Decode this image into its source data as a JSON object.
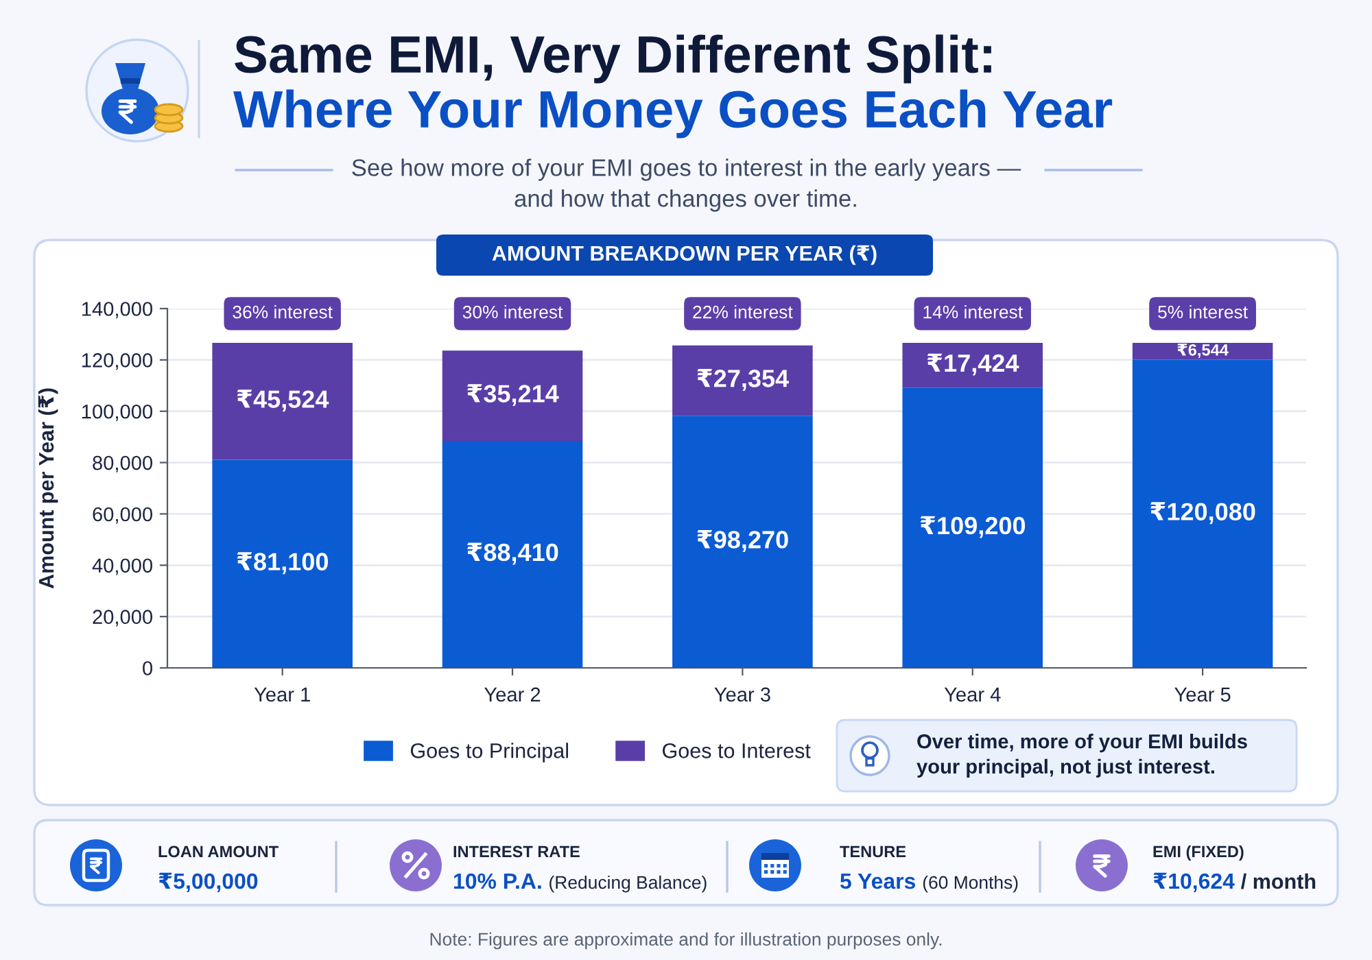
{
  "chart_data": {
    "type": "bar",
    "title": "Same EMI, Very Different Split:\nWhere Your Money Goes Each Year",
    "subtitle": "See how more of your EMI goes to interest in the early years —\nand how that changes over time.",
    "ylabel": "Amount per Year (₹)",
    "categories": [
      "Year 1",
      "Year 2",
      "Year 3",
      "Year 4",
      "Year 5"
    ],
    "stacked": true,
    "series": [
      {
        "name": "Goes to Principal",
        "color": "#0b5bd3",
        "values": [
          81100,
          88410,
          98270,
          109200,
          120080
        ],
        "value_labels": [
          "₹81,100",
          "₹88,410",
          "₹98,270",
          "₹109,200",
          "₹120,080"
        ]
      },
      {
        "name": "Goes to Interest",
        "color": "#5a3ea8",
        "values": [
          45524,
          35214,
          27354,
          17424,
          6544
        ],
        "value_labels": [
          "₹45,524",
          "₹35,214",
          "₹27,354",
          "₹17,424",
          "₹6,544"
        ]
      }
    ],
    "ylim": [
      0,
      140000
    ],
    "yticks": [
      0,
      {
        "value": 20000,
        "label": "20,000"
      },
      {
        "value": 40000,
        "label": "40,000"
      },
      {
        "value": 60000,
        "label": "60,000"
      },
      {
        "value": 80000,
        "label": "80,000"
      },
      {
        "value": 100000,
        "label": "100,000"
      },
      {
        "value": 120000,
        "label": "120,000"
      },
      {
        "value": 140000,
        "label": "140,000"
      }
    ],
    "grid": "y",
    "legend": "bottom",
    "annotations": [
      "AMOUNT BREAKDOWN PER YEAR (₹)",
      "36% interest",
      "30% interest",
      "22% interest",
      "14% interest",
      "5% interest",
      "Over time, more of your EMI builds\nyour principal, not just interest.",
      "LOAN AMOUNT",
      "₹5,00,000",
      "INTEREST RATE",
      "10% P.A.",
      "(Reducing Balance)",
      "TENURE",
      "5 Years",
      "(60 Months)",
      "EMI (FIXED)",
      "₹10,624",
      "/ month",
      "Note: Figures are approximate and for illustration purposes only."
    ]
  }
}
